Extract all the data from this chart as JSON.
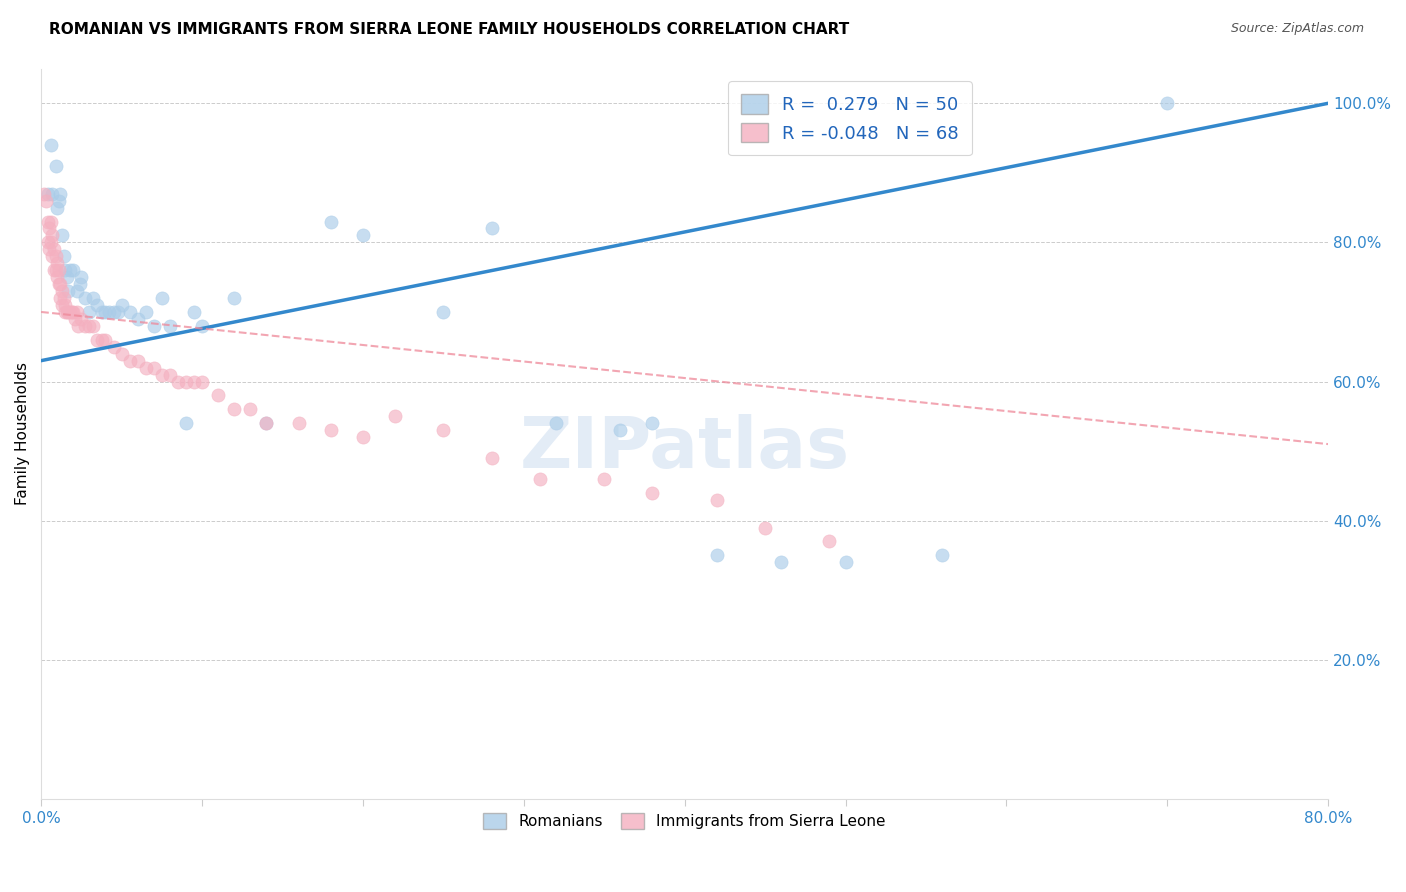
{
  "title": "ROMANIAN VS IMMIGRANTS FROM SIERRA LEONE FAMILY HOUSEHOLDS CORRELATION CHART",
  "source": "Source: ZipAtlas.com",
  "ylabel": "Family Households",
  "xlim": [
    0.0,
    0.8
  ],
  "ylim": [
    0.0,
    1.05
  ],
  "yticks": [
    0.0,
    0.2,
    0.4,
    0.6,
    0.8,
    1.0
  ],
  "ytick_labels": [
    "",
    "20.0%",
    "40.0%",
    "60.0%",
    "80.0%",
    "100.0%"
  ],
  "xticks": [
    0.0,
    0.1,
    0.2,
    0.3,
    0.4,
    0.5,
    0.6,
    0.7,
    0.8
  ],
  "xtick_labels": [
    "0.0%",
    "",
    "",
    "",
    "",
    "",
    "",
    "",
    "80.0%"
  ],
  "blue_color": "#aacce8",
  "pink_color": "#f4b0c0",
  "blue_line_color": "#3388cc",
  "pink_line_color": "#ee8899",
  "watermark_text": "ZIPatlas",
  "legend_r1_label": "R =  0.279   N = 50",
  "legend_r2_label": "R = -0.048   N = 68",
  "bottom_legend_1": "Romanians",
  "bottom_legend_2": "Immigrants from Sierra Leone",
  "blue_regression": [
    0.0,
    0.8,
    0.63,
    1.0
  ],
  "pink_regression": [
    0.0,
    0.8,
    0.7,
    0.51
  ],
  "blue_scatter_x": [
    0.004,
    0.006,
    0.007,
    0.009,
    0.01,
    0.011,
    0.012,
    0.013,
    0.014,
    0.015,
    0.016,
    0.017,
    0.018,
    0.02,
    0.022,
    0.024,
    0.025,
    0.027,
    0.03,
    0.032,
    0.035,
    0.038,
    0.04,
    0.042,
    0.045,
    0.048,
    0.05,
    0.055,
    0.06,
    0.065,
    0.07,
    0.075,
    0.08,
    0.09,
    0.095,
    0.1,
    0.12,
    0.14,
    0.18,
    0.2,
    0.25,
    0.28,
    0.32,
    0.36,
    0.38,
    0.42,
    0.46,
    0.5,
    0.56,
    0.7
  ],
  "blue_scatter_y": [
    0.87,
    0.94,
    0.87,
    0.91,
    0.85,
    0.86,
    0.87,
    0.81,
    0.78,
    0.76,
    0.75,
    0.73,
    0.76,
    0.76,
    0.73,
    0.74,
    0.75,
    0.72,
    0.7,
    0.72,
    0.71,
    0.7,
    0.7,
    0.7,
    0.7,
    0.7,
    0.71,
    0.7,
    0.69,
    0.7,
    0.68,
    0.72,
    0.68,
    0.54,
    0.7,
    0.68,
    0.72,
    0.54,
    0.83,
    0.81,
    0.7,
    0.82,
    0.54,
    0.53,
    0.54,
    0.35,
    0.34,
    0.34,
    0.35,
    1.0
  ],
  "pink_scatter_x": [
    0.002,
    0.003,
    0.004,
    0.004,
    0.005,
    0.005,
    0.006,
    0.006,
    0.007,
    0.007,
    0.008,
    0.008,
    0.009,
    0.009,
    0.01,
    0.01,
    0.011,
    0.011,
    0.012,
    0.012,
    0.013,
    0.013,
    0.014,
    0.015,
    0.015,
    0.016,
    0.017,
    0.018,
    0.019,
    0.02,
    0.021,
    0.022,
    0.023,
    0.025,
    0.027,
    0.03,
    0.032,
    0.035,
    0.038,
    0.04,
    0.045,
    0.05,
    0.055,
    0.06,
    0.065,
    0.07,
    0.075,
    0.08,
    0.085,
    0.09,
    0.095,
    0.1,
    0.11,
    0.12,
    0.13,
    0.14,
    0.16,
    0.18,
    0.2,
    0.22,
    0.25,
    0.28,
    0.31,
    0.35,
    0.38,
    0.42,
    0.45,
    0.49
  ],
  "pink_scatter_y": [
    0.87,
    0.86,
    0.83,
    0.8,
    0.82,
    0.79,
    0.83,
    0.8,
    0.81,
    0.78,
    0.79,
    0.76,
    0.78,
    0.76,
    0.77,
    0.75,
    0.76,
    0.74,
    0.74,
    0.72,
    0.73,
    0.71,
    0.72,
    0.71,
    0.7,
    0.7,
    0.7,
    0.7,
    0.7,
    0.7,
    0.69,
    0.7,
    0.68,
    0.69,
    0.68,
    0.68,
    0.68,
    0.66,
    0.66,
    0.66,
    0.65,
    0.64,
    0.63,
    0.63,
    0.62,
    0.62,
    0.61,
    0.61,
    0.6,
    0.6,
    0.6,
    0.6,
    0.58,
    0.56,
    0.56,
    0.54,
    0.54,
    0.53,
    0.52,
    0.55,
    0.53,
    0.49,
    0.46,
    0.46,
    0.44,
    0.43,
    0.39,
    0.37
  ]
}
